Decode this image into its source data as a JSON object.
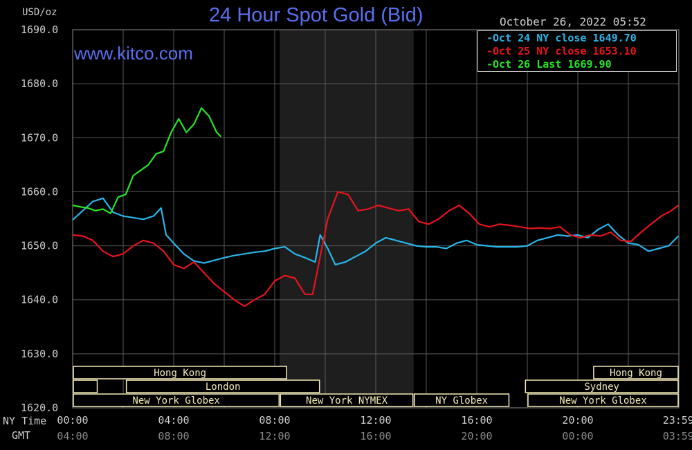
{
  "header": {
    "unit_label": "USD/oz",
    "title": "24 Hour Spot Gold (Bid)",
    "timestamp": "October 26, 2022 05:52",
    "watermark": "www.kitco.com"
  },
  "legend": [
    {
      "text": "Oct 24 NY close 1649.70",
      "color": "#29b6e8"
    },
    {
      "text": "Oct 25 NY close 1653.10",
      "color": "#e8141c"
    },
    {
      "text": "Oct 26 Last 1669.90",
      "color": "#27e627"
    }
  ],
  "row_labels": {
    "ny_time": "NY Time",
    "gmt": "GMT"
  },
  "sessions": {
    "hong_kong_1": "Hong Kong",
    "london": "London",
    "ny_globex_1": "New York Globex",
    "ny_nymex": "New York NYMEX",
    "ny_globex_2": "NY Globex",
    "hong_kong_2": "Hong Kong",
    "sydney": "Sydney",
    "ny_globex_3": "New York Globex"
  },
  "colors": {
    "background": "#000000",
    "grid": "#5a5a5a",
    "shade": "#1e1e1e",
    "title": "#5a6ff0",
    "text": "#d0d0d0",
    "session_bar": "#f5ecb8",
    "session_fill": "#000000"
  },
  "chart_data": {
    "type": "line",
    "title": "24 Hour Spot Gold (Bid)",
    "ylabel": "USD/oz",
    "ylim": [
      1620,
      1690
    ],
    "xlim_hours": [
      0,
      24
    ],
    "shaded_region_hours": [
      8.2,
      13.5
    ],
    "y_ticks": [
      "1690.0",
      "1680.0",
      "1670.0",
      "1660.0",
      "1650.0",
      "1640.0",
      "1630.0",
      "1620.0"
    ],
    "x_ticks_ny": [
      "00:00",
      "04:00",
      "08:00",
      "12:00",
      "16:00",
      "20:00",
      "23:59"
    ],
    "x_ticks_gmt": [
      "04:00",
      "08:00",
      "12:00",
      "16:00",
      "20:00",
      "00:00",
      "03:59"
    ],
    "series": [
      {
        "name": "Oct 24",
        "color": "#29b6e8",
        "x": [
          0,
          0.4,
          0.8,
          1.2,
          1.6,
          2.0,
          2.4,
          2.8,
          3.2,
          3.5,
          3.7,
          4.0,
          4.4,
          4.8,
          5.2,
          5.6,
          6.0,
          6.4,
          6.8,
          7.2,
          7.6,
          8.0,
          8.4,
          8.8,
          9.2,
          9.6,
          9.8,
          10.1,
          10.4,
          10.8,
          11.2,
          11.6,
          12.0,
          12.4,
          12.8,
          13.2,
          13.6,
          14.0,
          14.4,
          14.8,
          15.2,
          15.6,
          16.0,
          16.4,
          16.8,
          17.2,
          17.6,
          18.0,
          18.4,
          18.8,
          19.2,
          19.6,
          20.0,
          20.4,
          20.8,
          21.2,
          21.6,
          22.0,
          22.4,
          22.8,
          23.2,
          23.6,
          23.98
        ],
        "y": [
          1654.8,
          1656.5,
          1658.2,
          1658.8,
          1656.2,
          1655.5,
          1655.2,
          1654.9,
          1655.5,
          1657.0,
          1652.0,
          1650.5,
          1648.5,
          1647.2,
          1646.8,
          1647.3,
          1647.8,
          1648.2,
          1648.5,
          1648.8,
          1649.0,
          1649.5,
          1649.8,
          1648.5,
          1647.8,
          1647.0,
          1652.0,
          1649.5,
          1646.5,
          1647.0,
          1648.0,
          1649.0,
          1650.5,
          1651.5,
          1651.0,
          1650.5,
          1650.0,
          1649.8,
          1649.8,
          1649.5,
          1650.5,
          1651.0,
          1650.2,
          1650.0,
          1649.8,
          1649.8,
          1649.8,
          1650.0,
          1651.0,
          1651.5,
          1652.0,
          1651.8,
          1652.0,
          1651.5,
          1653.0,
          1654.0,
          1652.0,
          1650.5,
          1650.2,
          1649.0,
          1649.5,
          1650.0,
          1651.8
        ]
      },
      {
        "name": "Oct 25",
        "color": "#e8141c",
        "x": [
          0,
          0.4,
          0.8,
          1.2,
          1.6,
          2.0,
          2.4,
          2.8,
          3.2,
          3.6,
          4.0,
          4.4,
          4.8,
          5.2,
          5.6,
          6.0,
          6.4,
          6.8,
          7.2,
          7.6,
          8.0,
          8.4,
          8.8,
          9.2,
          9.5,
          9.8,
          10.1,
          10.5,
          10.9,
          11.3,
          11.7,
          12.1,
          12.5,
          12.9,
          13.3,
          13.7,
          14.1,
          14.5,
          14.9,
          15.3,
          15.7,
          16.1,
          16.5,
          16.9,
          17.3,
          17.7,
          18.1,
          18.5,
          18.9,
          19.3,
          19.7,
          20.1,
          20.5,
          20.9,
          21.3,
          21.7,
          22.1,
          22.5,
          22.9,
          23.3,
          23.7,
          23.98
        ],
        "y": [
          1652.0,
          1651.8,
          1651.0,
          1649.0,
          1648.0,
          1648.5,
          1650.0,
          1651.0,
          1650.5,
          1649.0,
          1646.5,
          1645.8,
          1647.0,
          1645.0,
          1643.0,
          1641.5,
          1640.0,
          1638.8,
          1640.0,
          1641.0,
          1643.5,
          1644.5,
          1644.0,
          1641.0,
          1641.0,
          1648.0,
          1655.0,
          1660.0,
          1659.5,
          1656.5,
          1656.8,
          1657.5,
          1657.0,
          1656.5,
          1656.8,
          1654.5,
          1654.0,
          1655.0,
          1656.5,
          1657.5,
          1656.0,
          1654.0,
          1653.5,
          1654.0,
          1653.8,
          1653.5,
          1653.2,
          1653.3,
          1653.2,
          1653.5,
          1652.0,
          1651.5,
          1652.0,
          1651.8,
          1652.5,
          1651.0,
          1650.8,
          1652.5,
          1654.0,
          1655.5,
          1656.5,
          1657.5
        ]
      },
      {
        "name": "Oct 26",
        "color": "#27e627",
        "x": [
          0,
          0.3,
          0.6,
          0.9,
          1.2,
          1.5,
          1.8,
          2.1,
          2.4,
          2.7,
          3.0,
          3.3,
          3.6,
          3.9,
          4.2,
          4.5,
          4.8,
          5.1,
          5.4,
          5.7,
          5.87
        ],
        "y": [
          1657.5,
          1657.2,
          1657.0,
          1656.5,
          1656.8,
          1656.0,
          1659.0,
          1659.5,
          1663.0,
          1664.0,
          1665.0,
          1667.0,
          1667.5,
          1671.0,
          1673.5,
          1671.0,
          1672.5,
          1675.5,
          1674.0,
          1671.0,
          1670.2
        ]
      }
    ]
  }
}
